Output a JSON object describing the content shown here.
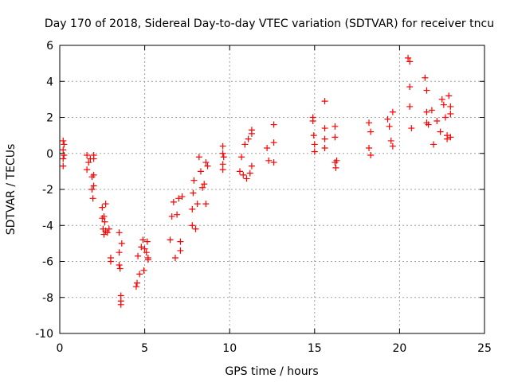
{
  "chart_data": {
    "type": "scatter",
    "title": "Day 170 of 2018, Sidereal Day-to-day VTEC variation (SDTVAR) for receiver tncu",
    "xlabel": "GPS time / hours",
    "ylabel": "SDTVAR / TECUs",
    "xlim": [
      0,
      25
    ],
    "ylim": [
      -10,
      6
    ],
    "x_ticks": [
      0,
      5,
      10,
      15,
      20,
      25
    ],
    "y_ticks": [
      -10,
      -8,
      -6,
      -4,
      -2,
      0,
      2,
      4,
      6
    ],
    "x_tick_labels": [
      "0",
      "5",
      "10",
      "15",
      "20",
      "25"
    ],
    "y_tick_labels": [
      "-10",
      "-8",
      "-6",
      "-4",
      "-2",
      "0",
      "2",
      "4",
      "6"
    ],
    "grid": true,
    "marker": "+",
    "color": "#ff0000",
    "series": [
      {
        "name": "SDTVAR",
        "x": [
          0.2,
          0.2,
          0.2,
          0.2,
          0.25,
          0.25,
          1.6,
          1.6,
          1.7,
          1.8,
          1.9,
          1.9,
          1.95,
          2.0,
          2.0,
          2.0,
          2.0,
          2.5,
          2.5,
          2.55,
          2.6,
          2.6,
          2.65,
          2.7,
          2.7,
          2.8,
          2.9,
          3.0,
          3.0,
          3.5,
          3.5,
          3.5,
          3.55,
          3.6,
          3.6,
          3.6,
          3.65,
          4.5,
          4.55,
          4.6,
          4.7,
          4.8,
          4.9,
          4.95,
          5.0,
          5.1,
          5.15,
          5.2,
          5.2,
          6.5,
          6.6,
          6.7,
          6.8,
          6.9,
          7.0,
          7.1,
          7.1,
          7.2,
          7.8,
          7.8,
          7.85,
          7.9,
          8.0,
          8.1,
          8.2,
          8.3,
          8.4,
          8.5,
          8.6,
          8.6,
          8.7,
          9.6,
          9.6,
          9.6,
          9.6,
          9.65,
          10.6,
          10.7,
          10.8,
          10.9,
          11.0,
          11.1,
          11.2,
          11.3,
          11.3,
          11.3,
          12.2,
          12.3,
          12.6,
          12.6,
          12.6,
          14.9,
          14.9,
          14.95,
          15.0,
          15.0,
          15.6,
          15.6,
          15.6,
          15.6,
          16.2,
          16.2,
          16.2,
          16.25,
          16.3,
          18.2,
          18.2,
          18.3,
          18.3,
          19.3,
          19.4,
          19.5,
          19.6,
          19.6,
          20.5,
          20.6,
          20.6,
          20.6,
          20.7,
          21.5,
          21.6,
          21.6,
          21.6,
          21.7,
          21.9,
          22.0,
          22.2,
          22.4,
          22.5,
          22.6,
          22.7,
          22.8,
          22.8,
          22.9,
          23.0,
          23.0,
          23.0
        ],
        "y": [
          0.7,
          0.2,
          -0.3,
          -0.7,
          -0.1,
          0.5,
          -0.1,
          -0.9,
          -0.5,
          -0.3,
          -1.3,
          -2.0,
          -2.5,
          -1.2,
          -1.8,
          -0.3,
          -0.1,
          -3.0,
          -3.6,
          -4.2,
          -3.5,
          -4.5,
          -3.8,
          -4.3,
          -2.8,
          -4.4,
          -4.2,
          -5.8,
          -6.0,
          -4.4,
          -5.5,
          -6.2,
          -6.4,
          -7.9,
          -8.2,
          -8.4,
          -5.0,
          -7.4,
          -7.2,
          -5.7,
          -6.7,
          -5.2,
          -4.8,
          -6.5,
          -5.3,
          -5.5,
          -4.9,
          -5.8,
          -5.9,
          -4.8,
          -3.5,
          -2.7,
          -5.8,
          -3.4,
          -2.5,
          -5.4,
          -4.9,
          -2.4,
          -4.0,
          -3.1,
          -2.2,
          -1.5,
          -4.2,
          -2.8,
          -0.2,
          -1.0,
          -1.9,
          -1.7,
          -2.8,
          -0.5,
          -0.7,
          0.4,
          0.0,
          -0.6,
          -0.9,
          -0.2,
          -1.0,
          -0.2,
          -1.2,
          0.5,
          -1.4,
          0.8,
          -1.1,
          -0.7,
          1.3,
          1.1,
          0.3,
          -0.4,
          1.6,
          -0.5,
          0.6,
          2.0,
          1.8,
          1.0,
          0.1,
          0.5,
          1.4,
          0.8,
          0.3,
          2.9,
          1.5,
          0.9,
          -0.5,
          -0.8,
          -0.4,
          1.7,
          0.3,
          -0.1,
          1.2,
          1.9,
          1.5,
          0.7,
          2.3,
          0.4,
          5.3,
          5.1,
          3.7,
          2.6,
          1.4,
          4.2,
          3.5,
          2.3,
          1.7,
          1.6,
          2.4,
          0.5,
          1.8,
          1.2,
          3.0,
          2.7,
          2.0,
          1.0,
          0.8,
          3.2,
          2.6,
          0.9,
          2.2
        ]
      }
    ]
  }
}
